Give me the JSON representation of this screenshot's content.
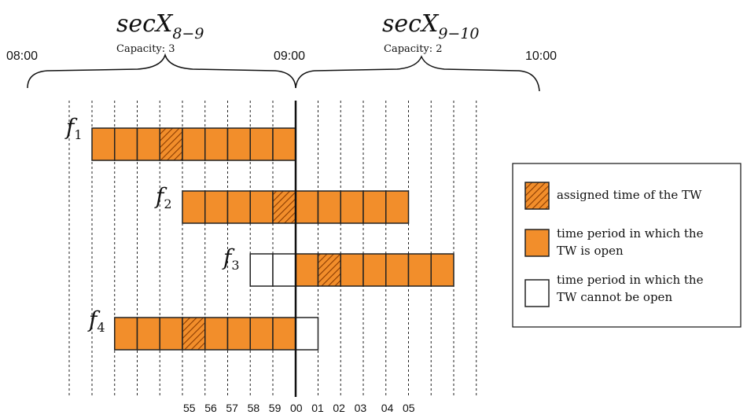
{
  "sectors": [
    {
      "name_base": "secX",
      "name_sub": "8−9",
      "capacity_label": "Capacity: 3"
    },
    {
      "name_base": "secX",
      "name_sub": "9−10",
      "capacity_label": "Capacity: 2"
    }
  ],
  "hour_labels": [
    "08:00",
    "09:00",
    "10:00"
  ],
  "minute_labels": [
    "55",
    "56",
    "57",
    "58",
    "59",
    "00",
    "01",
    "02",
    "03",
    "04",
    "05"
  ],
  "flights": [
    {
      "label_base": "f",
      "label_sub": "1",
      "cells": [
        "open",
        "open",
        "open",
        "assigned",
        "open",
        "open",
        "open",
        "open",
        "open"
      ]
    },
    {
      "label_base": "f",
      "label_sub": "2",
      "cells": [
        "open",
        "open",
        "open",
        "open",
        "assigned",
        "open",
        "open",
        "open",
        "open",
        "open"
      ]
    },
    {
      "label_base": "f",
      "label_sub": "3",
      "cells": [
        "closed",
        "closed",
        "open",
        "assigned",
        "open",
        "open",
        "open",
        "open",
        "open"
      ]
    },
    {
      "label_base": "f",
      "label_sub": "4",
      "cells": [
        "open",
        "open",
        "open",
        "assigned",
        "open",
        "open",
        "open",
        "open",
        "closed"
      ]
    }
  ],
  "legend": {
    "items": [
      {
        "kind": "assigned",
        "text_lines": [
          "assigned time of the TW"
        ]
      },
      {
        "kind": "open",
        "text_lines": [
          "time period in which the",
          "TW is open"
        ]
      },
      {
        "kind": "closed",
        "text_lines": [
          "time period in which the",
          "TW cannot be open"
        ]
      }
    ]
  },
  "colors": {
    "open": "#f28e2b",
    "stroke": "#222222",
    "hatch": "#8a3b00",
    "closed": "#ffffff"
  }
}
